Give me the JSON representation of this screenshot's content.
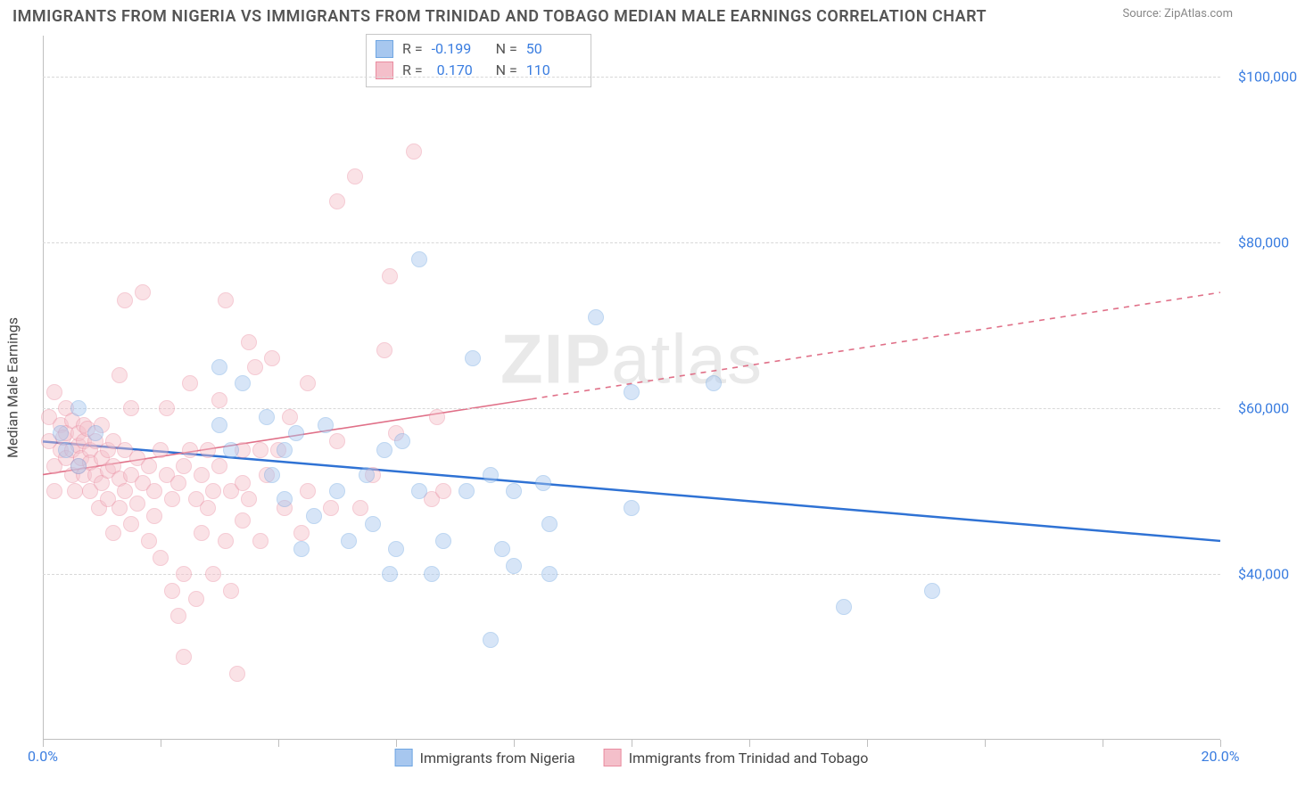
{
  "title": "IMMIGRANTS FROM NIGERIA VS IMMIGRANTS FROM TRINIDAD AND TOBAGO MEDIAN MALE EARNINGS CORRELATION CHART",
  "source_prefix": "Source: ",
  "source_name": "ZipAtlas.com",
  "watermark_a": "ZIP",
  "watermark_b": "atlas",
  "ylabel": "Median Male Earnings",
  "chart": {
    "type": "scatter",
    "background_color": "#ffffff",
    "grid_color": "#d8d8d8",
    "axis_color": "#bfbfbf",
    "xlim": [
      0,
      20
    ],
    "ylim": [
      20000,
      105000
    ],
    "ytick_values": [
      40000,
      60000,
      80000,
      100000
    ],
    "ytick_labels": [
      "$40,000",
      "$60,000",
      "$80,000",
      "$100,000"
    ],
    "xtick_values": [
      0,
      2,
      4,
      6,
      8,
      10,
      12,
      14,
      16,
      18,
      20
    ],
    "xtick_label_left": "0.0%",
    "xtick_label_right": "20.0%",
    "tick_label_color": "#3a7de0",
    "marker_radius": 9,
    "marker_opacity": 0.45,
    "series": [
      {
        "name": "Immigrants from Nigeria",
        "color_fill": "#a7c7ef",
        "color_stroke": "#6fa6e2",
        "R": "-0.199",
        "N": "50",
        "trend": {
          "x1": 0,
          "y1": 56000,
          "x2": 20,
          "y2": 44000,
          "color": "#2f72d4",
          "width": 2.5,
          "dash": "none"
        },
        "points": [
          [
            0.3,
            57000
          ],
          [
            0.4,
            55000
          ],
          [
            0.6,
            60000
          ],
          [
            0.6,
            53000
          ],
          [
            0.9,
            57000
          ],
          [
            3.0,
            65000
          ],
          [
            3.0,
            58000
          ],
          [
            3.2,
            55000
          ],
          [
            3.4,
            63000
          ],
          [
            3.8,
            59000
          ],
          [
            3.9,
            52000
          ],
          [
            4.1,
            49000
          ],
          [
            4.1,
            55000
          ],
          [
            4.3,
            57000
          ],
          [
            4.6,
            47000
          ],
          [
            4.4,
            43000
          ],
          [
            4.8,
            58000
          ],
          [
            5.0,
            50000
          ],
          [
            5.2,
            44000
          ],
          [
            5.5,
            52000
          ],
          [
            5.6,
            46000
          ],
          [
            5.8,
            55000
          ],
          [
            5.9,
            40000
          ],
          [
            6.0,
            43000
          ],
          [
            6.1,
            56000
          ],
          [
            6.4,
            78000
          ],
          [
            6.4,
            50000
          ],
          [
            6.6,
            40000
          ],
          [
            6.8,
            44000
          ],
          [
            7.3,
            66000
          ],
          [
            7.2,
            50000
          ],
          [
            7.6,
            32000
          ],
          [
            7.8,
            43000
          ],
          [
            7.6,
            52000
          ],
          [
            8.0,
            50000
          ],
          [
            8.0,
            41000
          ],
          [
            8.5,
            51000
          ],
          [
            8.6,
            40000
          ],
          [
            8.6,
            46000
          ],
          [
            9.4,
            71000
          ],
          [
            10.0,
            62000
          ],
          [
            10.0,
            48000
          ],
          [
            11.4,
            63000
          ],
          [
            13.6,
            36000
          ],
          [
            15.1,
            38000
          ]
        ]
      },
      {
        "name": "Immigrants from Trinidad and Tobago",
        "color_fill": "#f4bfca",
        "color_stroke": "#e98ca0",
        "R": "0.170",
        "N": "110",
        "trend": {
          "x1": 0,
          "y1": 52000,
          "x2": 20,
          "y2": 74000,
          "color": "#e07088",
          "width": 1.6,
          "dash": "5,5"
        },
        "trend_solid_until_x": 8.3,
        "points": [
          [
            0.1,
            56000
          ],
          [
            0.1,
            59000
          ],
          [
            0.2,
            62000
          ],
          [
            0.2,
            53000
          ],
          [
            0.2,
            50000
          ],
          [
            0.3,
            58000
          ],
          [
            0.3,
            55000
          ],
          [
            0.35,
            56500
          ],
          [
            0.4,
            57000
          ],
          [
            0.4,
            54000
          ],
          [
            0.4,
            60000
          ],
          [
            0.5,
            55000
          ],
          [
            0.5,
            52000
          ],
          [
            0.5,
            58500
          ],
          [
            0.55,
            50000
          ],
          [
            0.6,
            55500
          ],
          [
            0.6,
            53000
          ],
          [
            0.6,
            57000
          ],
          [
            0.65,
            54000
          ],
          [
            0.7,
            56000
          ],
          [
            0.7,
            58000
          ],
          [
            0.7,
            52000
          ],
          [
            0.75,
            57500
          ],
          [
            0.8,
            55000
          ],
          [
            0.8,
            50000
          ],
          [
            0.8,
            53500
          ],
          [
            0.9,
            56000
          ],
          [
            0.9,
            52000
          ],
          [
            0.95,
            48000
          ],
          [
            1.0,
            54000
          ],
          [
            1.0,
            51000
          ],
          [
            1.0,
            58000
          ],
          [
            1.1,
            55000
          ],
          [
            1.1,
            52500
          ],
          [
            1.1,
            49000
          ],
          [
            1.2,
            56000
          ],
          [
            1.2,
            45000
          ],
          [
            1.2,
            53000
          ],
          [
            1.3,
            64000
          ],
          [
            1.3,
            48000
          ],
          [
            1.3,
            51500
          ],
          [
            1.4,
            73000
          ],
          [
            1.4,
            55000
          ],
          [
            1.4,
            50000
          ],
          [
            1.5,
            52000
          ],
          [
            1.5,
            60000
          ],
          [
            1.5,
            46000
          ],
          [
            1.6,
            54000
          ],
          [
            1.6,
            48500
          ],
          [
            1.7,
            74000
          ],
          [
            1.7,
            51000
          ],
          [
            1.8,
            44000
          ],
          [
            1.8,
            53000
          ],
          [
            1.9,
            50000
          ],
          [
            1.9,
            47000
          ],
          [
            2.0,
            55000
          ],
          [
            2.0,
            42000
          ],
          [
            2.1,
            52000
          ],
          [
            2.1,
            60000
          ],
          [
            2.2,
            38000
          ],
          [
            2.2,
            49000
          ],
          [
            2.3,
            35000
          ],
          [
            2.3,
            51000
          ],
          [
            2.4,
            53000
          ],
          [
            2.4,
            40000
          ],
          [
            2.4,
            30000
          ],
          [
            2.5,
            55000
          ],
          [
            2.5,
            63000
          ],
          [
            2.6,
            49000
          ],
          [
            2.6,
            37000
          ],
          [
            2.7,
            52000
          ],
          [
            2.7,
            45000
          ],
          [
            2.8,
            55000
          ],
          [
            2.8,
            48000
          ],
          [
            2.9,
            50000
          ],
          [
            2.9,
            40000
          ],
          [
            3.0,
            53000
          ],
          [
            3.0,
            61000
          ],
          [
            3.1,
            73000
          ],
          [
            3.1,
            44000
          ],
          [
            3.2,
            50000
          ],
          [
            3.2,
            38000
          ],
          [
            3.3,
            28000
          ],
          [
            3.4,
            55000
          ],
          [
            3.4,
            51000
          ],
          [
            3.4,
            46500
          ],
          [
            3.5,
            68000
          ],
          [
            3.5,
            49000
          ],
          [
            3.6,
            65000
          ],
          [
            3.7,
            55000
          ],
          [
            3.7,
            44000
          ],
          [
            3.8,
            52000
          ],
          [
            3.9,
            66000
          ],
          [
            4.0,
            55000
          ],
          [
            4.1,
            48000
          ],
          [
            4.2,
            59000
          ],
          [
            4.4,
            45000
          ],
          [
            4.5,
            63000
          ],
          [
            4.5,
            50000
          ],
          [
            4.9,
            48000
          ],
          [
            5.0,
            85000
          ],
          [
            5.0,
            56000
          ],
          [
            5.3,
            88000
          ],
          [
            5.4,
            48000
          ],
          [
            5.6,
            52000
          ],
          [
            5.8,
            67000
          ],
          [
            5.9,
            76000
          ],
          [
            6.0,
            57000
          ],
          [
            6.3,
            91000
          ],
          [
            6.6,
            49000
          ],
          [
            6.7,
            59000
          ],
          [
            6.8,
            50000
          ]
        ]
      }
    ]
  }
}
